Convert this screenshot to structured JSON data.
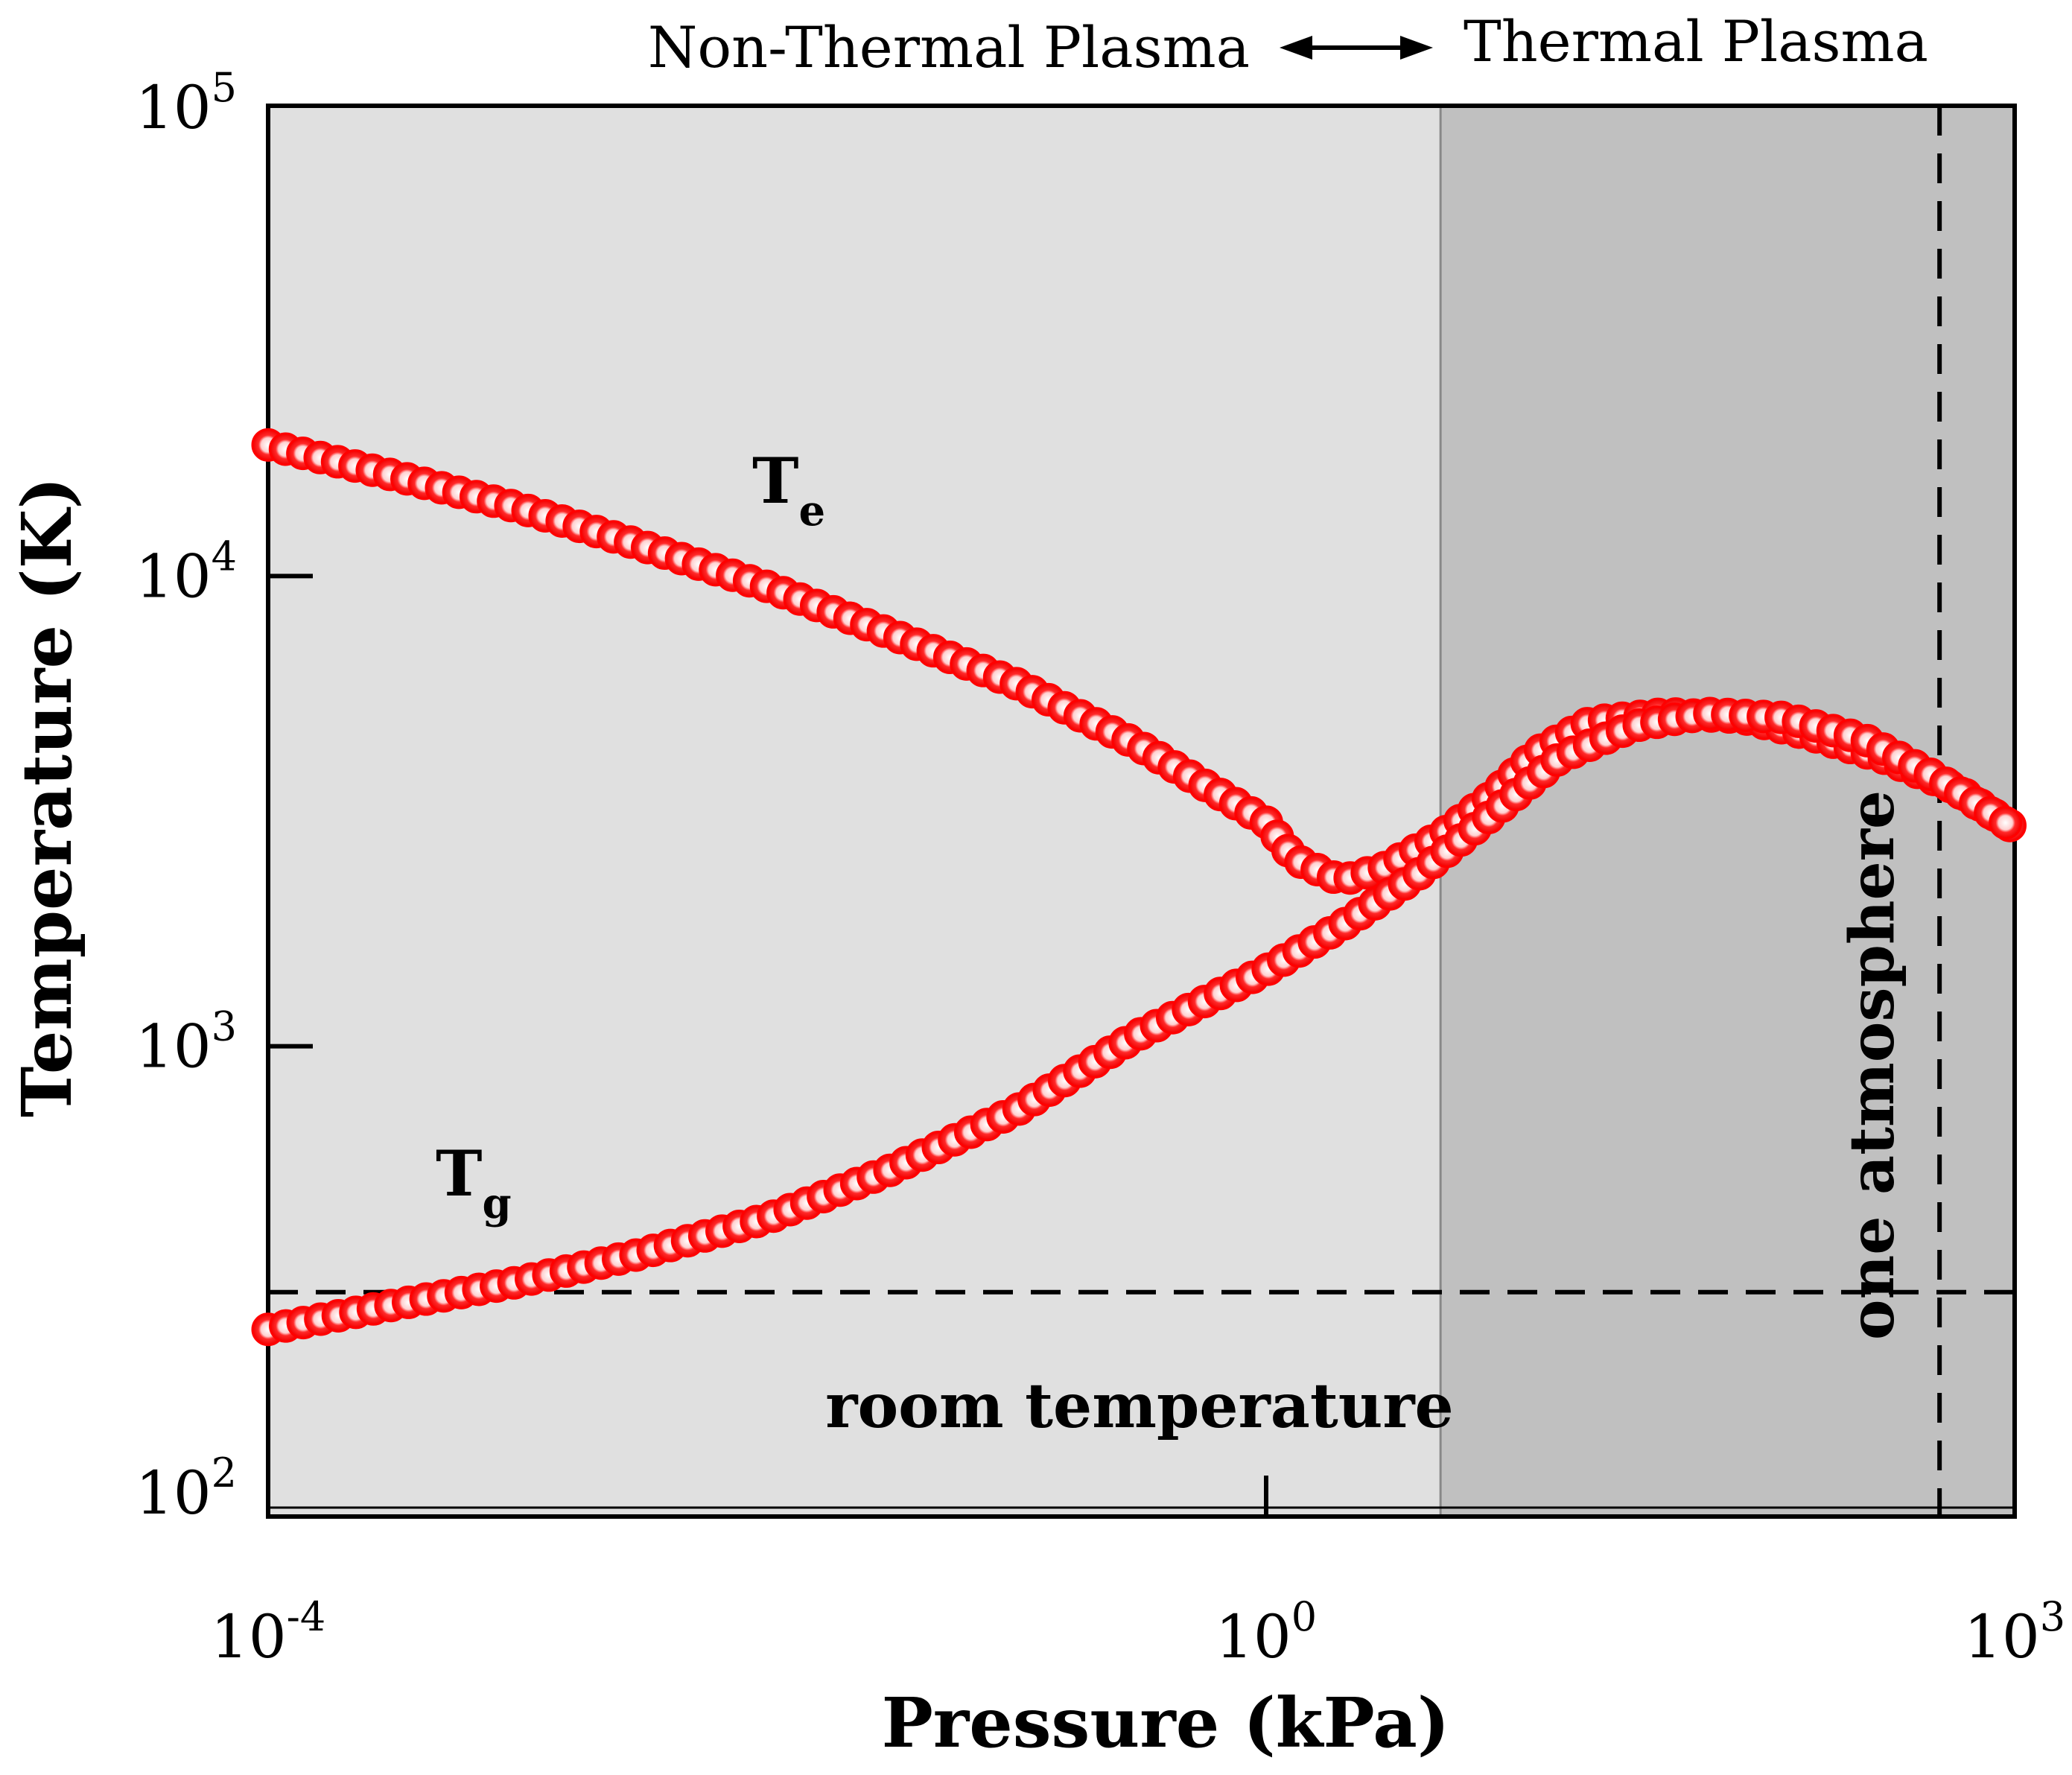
{
  "chart_data": {
    "type": "scatter",
    "xscale": "log",
    "yscale": "log",
    "xlim": [
      0.0001,
      1000
    ],
    "ylim": [
      100,
      100000
    ],
    "xlabel": "Pressure (kPa)",
    "ylabel": "Temperature (K)",
    "x_ticks": [
      {
        "value": 0.0001,
        "base": "10",
        "exp": "-4"
      },
      {
        "value": 1,
        "base": "10",
        "exp": "0"
      },
      {
        "value": 1000,
        "base": "10",
        "exp": "3"
      }
    ],
    "y_ticks": [
      {
        "value": 100,
        "base": "10",
        "exp": "2"
      },
      {
        "value": 1000,
        "base": "10",
        "exp": "3"
      },
      {
        "value": 10000,
        "base": "10",
        "exp": "4"
      },
      {
        "value": 100000,
        "base": "10",
        "exp": "5"
      }
    ],
    "regions": [
      {
        "name": "Non-Thermal Plasma",
        "x_range": [
          0.0001,
          5
        ],
        "color": "#e0e0e0"
      },
      {
        "name": "Thermal Plasma",
        "x_range": [
          5,
          1000
        ],
        "color": "#c0c0c0"
      }
    ],
    "region_arrow": {
      "left_label": "Non-Thermal Plasma",
      "right_label": "Thermal Plasma"
    },
    "reference_lines": [
      {
        "orientation": "horizontal",
        "value": 300,
        "label": "room temperature"
      },
      {
        "orientation": "vertical",
        "value": 500,
        "label": "one atmosphere"
      }
    ],
    "marker_color": "#ff0000",
    "series": [
      {
        "name": "Te",
        "label_main": "T",
        "label_sub": "e",
        "x": [
          0.0001,
          0.0003,
          0.001,
          0.003,
          0.01,
          0.03,
          0.1,
          0.3,
          1,
          1.3,
          2,
          3,
          5,
          8,
          12,
          20,
          40,
          80,
          150,
          300,
          600,
          1000
        ],
        "y": [
          19000,
          16500,
          14000,
          11700,
          9500,
          7600,
          5900,
          4400,
          3000,
          2500,
          2250,
          2400,
          2800,
          3400,
          4200,
          4900,
          5100,
          5000,
          4600,
          4100,
          3500,
          2900
        ]
      },
      {
        "name": "Tg",
        "label_main": "T",
        "label_sub": "g",
        "x": [
          0.0001,
          0.0003,
          0.001,
          0.003,
          0.01,
          0.03,
          0.1,
          0.3,
          1,
          2,
          4,
          8,
          15,
          30,
          60,
          120,
          250,
          500,
          1000
        ],
        "y": [
          250,
          280,
          315,
          360,
          430,
          540,
          730,
          1050,
          1450,
          1800,
          2300,
          3100,
          4100,
          4800,
          5100,
          5000,
          4500,
          3700,
          2900
        ]
      }
    ]
  }
}
